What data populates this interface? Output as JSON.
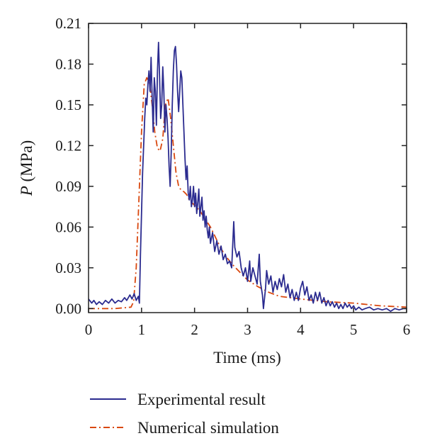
{
  "chart_data": {
    "type": "line",
    "title": "",
    "xlabel": "Time (ms)",
    "ylabel": {
      "symbol": "P",
      "unit": " (MPa)"
    },
    "xlim": [
      0,
      6
    ],
    "ylim": [
      -0.003,
      0.21
    ],
    "xticks": [
      "0",
      "1",
      "2",
      "3",
      "4",
      "5",
      "6"
    ],
    "yticks": [
      "0.00",
      "0.03",
      "0.06",
      "0.09",
      "0.12",
      "0.15",
      "0.18",
      "0.21"
    ],
    "grid": false,
    "legend_position": "bottom",
    "series": [
      {
        "name": "Experimental result",
        "color": "#2b2b8f",
        "style": "solid",
        "points": [
          [
            0.0,
            0.007
          ],
          [
            0.06,
            0.004
          ],
          [
            0.1,
            0.006
          ],
          [
            0.15,
            0.003
          ],
          [
            0.2,
            0.005
          ],
          [
            0.26,
            0.003
          ],
          [
            0.32,
            0.006
          ],
          [
            0.38,
            0.004
          ],
          [
            0.44,
            0.007
          ],
          [
            0.5,
            0.004
          ],
          [
            0.56,
            0.006
          ],
          [
            0.62,
            0.005
          ],
          [
            0.68,
            0.008
          ],
          [
            0.72,
            0.006
          ],
          [
            0.78,
            0.01
          ],
          [
            0.82,
            0.007
          ],
          [
            0.86,
            0.011
          ],
          [
            0.9,
            0.006
          ],
          [
            0.94,
            0.009
          ],
          [
            0.96,
            0.004
          ],
          [
            0.98,
            0.04
          ],
          [
            1.0,
            0.07
          ],
          [
            1.02,
            0.1
          ],
          [
            1.04,
            0.12
          ],
          [
            1.06,
            0.14
          ],
          [
            1.08,
            0.155
          ],
          [
            1.1,
            0.15
          ],
          [
            1.12,
            0.165
          ],
          [
            1.14,
            0.175
          ],
          [
            1.16,
            0.16
          ],
          [
            1.18,
            0.185
          ],
          [
            1.2,
            0.155
          ],
          [
            1.22,
            0.13
          ],
          [
            1.24,
            0.17
          ],
          [
            1.26,
            0.16
          ],
          [
            1.28,
            0.135
          ],
          [
            1.3,
            0.175
          ],
          [
            1.32,
            0.196
          ],
          [
            1.34,
            0.17
          ],
          [
            1.36,
            0.14
          ],
          [
            1.38,
            0.15
          ],
          [
            1.4,
            0.178
          ],
          [
            1.42,
            0.16
          ],
          [
            1.44,
            0.13
          ],
          [
            1.46,
            0.15
          ],
          [
            1.48,
            0.14
          ],
          [
            1.5,
            0.125
          ],
          [
            1.52,
            0.105
          ],
          [
            1.54,
            0.09
          ],
          [
            1.56,
            0.115
          ],
          [
            1.58,
            0.15
          ],
          [
            1.6,
            0.175
          ],
          [
            1.62,
            0.19
          ],
          [
            1.64,
            0.193
          ],
          [
            1.66,
            0.18
          ],
          [
            1.68,
            0.16
          ],
          [
            1.7,
            0.145
          ],
          [
            1.72,
            0.16
          ],
          [
            1.74,
            0.175
          ],
          [
            1.76,
            0.17
          ],
          [
            1.78,
            0.15
          ],
          [
            1.8,
            0.13
          ],
          [
            1.82,
            0.11
          ],
          [
            1.84,
            0.095
          ],
          [
            1.86,
            0.105
          ],
          [
            1.88,
            0.085
          ],
          [
            1.9,
            0.08
          ],
          [
            1.92,
            0.09
          ],
          [
            1.94,
            0.075
          ],
          [
            1.96,
            0.08
          ],
          [
            1.98,
            0.09
          ],
          [
            2.0,
            0.075
          ],
          [
            2.02,
            0.085
          ],
          [
            2.04,
            0.07
          ],
          [
            2.06,
            0.078
          ],
          [
            2.08,
            0.088
          ],
          [
            2.1,
            0.068
          ],
          [
            2.12,
            0.075
          ],
          [
            2.14,
            0.082
          ],
          [
            2.16,
            0.065
          ],
          [
            2.18,
            0.072
          ],
          [
            2.2,
            0.06
          ],
          [
            2.22,
            0.068
          ],
          [
            2.24,
            0.058
          ],
          [
            2.26,
            0.052
          ],
          [
            2.28,
            0.06
          ],
          [
            2.3,
            0.048
          ],
          [
            2.34,
            0.056
          ],
          [
            2.38,
            0.042
          ],
          [
            2.42,
            0.05
          ],
          [
            2.46,
            0.04
          ],
          [
            2.5,
            0.046
          ],
          [
            2.54,
            0.036
          ],
          [
            2.58,
            0.04
          ],
          [
            2.62,
            0.033
          ],
          [
            2.66,
            0.035
          ],
          [
            2.7,
            0.03
          ],
          [
            2.74,
            0.064
          ],
          [
            2.76,
            0.045
          ],
          [
            2.8,
            0.038
          ],
          [
            2.84,
            0.042
          ],
          [
            2.88,
            0.03
          ],
          [
            2.92,
            0.024
          ],
          [
            2.96,
            0.03
          ],
          [
            3.0,
            0.02
          ],
          [
            3.04,
            0.035
          ],
          [
            3.06,
            0.02
          ],
          [
            3.1,
            0.03
          ],
          [
            3.14,
            0.024
          ],
          [
            3.18,
            0.018
          ],
          [
            3.22,
            0.04
          ],
          [
            3.24,
            0.02
          ],
          [
            3.28,
            0.01
          ],
          [
            3.3,
            0.0
          ],
          [
            3.34,
            0.015
          ],
          [
            3.36,
            0.028
          ],
          [
            3.4,
            0.018
          ],
          [
            3.44,
            0.024
          ],
          [
            3.48,
            0.012
          ],
          [
            3.52,
            0.02
          ],
          [
            3.56,
            0.014
          ],
          [
            3.6,
            0.022
          ],
          [
            3.64,
            0.016
          ],
          [
            3.68,
            0.025
          ],
          [
            3.72,
            0.012
          ],
          [
            3.76,
            0.018
          ],
          [
            3.8,
            0.008
          ],
          [
            3.84,
            0.014
          ],
          [
            3.88,
            0.006
          ],
          [
            3.92,
            0.012
          ],
          [
            3.96,
            0.006
          ],
          [
            4.0,
            0.015
          ],
          [
            4.04,
            0.02
          ],
          [
            4.08,
            0.01
          ],
          [
            4.12,
            0.016
          ],
          [
            4.16,
            0.006
          ],
          [
            4.2,
            0.01
          ],
          [
            4.24,
            0.004
          ],
          [
            4.28,
            0.012
          ],
          [
            4.32,
            0.006
          ],
          [
            4.36,
            0.012
          ],
          [
            4.4,
            0.004
          ],
          [
            4.44,
            0.008
          ],
          [
            4.48,
            0.002
          ],
          [
            4.52,
            0.006
          ],
          [
            4.56,
            0.002
          ],
          [
            4.6,
            0.005
          ],
          [
            4.64,
            0.001
          ],
          [
            4.68,
            0.004
          ],
          [
            4.72,
            0.0
          ],
          [
            4.76,
            0.003
          ],
          [
            4.8,
            0.0
          ],
          [
            4.84,
            0.004
          ],
          [
            4.88,
            0.001
          ],
          [
            4.92,
            0.003
          ],
          [
            4.96,
            0.0
          ],
          [
            5.0,
            0.002
          ],
          [
            5.04,
            -0.001
          ],
          [
            5.1,
            0.001
          ],
          [
            5.16,
            -0.001
          ],
          [
            5.22,
            0.0
          ],
          [
            5.3,
            0.001
          ],
          [
            5.38,
            -0.001
          ],
          [
            5.46,
            0.0
          ],
          [
            5.54,
            -0.001
          ],
          [
            5.62,
            0.0
          ],
          [
            5.7,
            -0.002
          ],
          [
            5.78,
            0.0
          ],
          [
            5.86,
            -0.001
          ],
          [
            5.94,
            0.0
          ],
          [
            6.0,
            0.0
          ]
        ]
      },
      {
        "name": "Numerical simulation",
        "color": "#d9480f",
        "style": "dash-dot",
        "points": [
          [
            0.0,
            0.0
          ],
          [
            0.5,
            0.0
          ],
          [
            0.8,
            0.001
          ],
          [
            0.85,
            0.005
          ],
          [
            0.9,
            0.03
          ],
          [
            0.95,
            0.08
          ],
          [
            1.0,
            0.13
          ],
          [
            1.05,
            0.165
          ],
          [
            1.1,
            0.17
          ],
          [
            1.15,
            0.166
          ],
          [
            1.2,
            0.15
          ],
          [
            1.25,
            0.13
          ],
          [
            1.3,
            0.118
          ],
          [
            1.35,
            0.116
          ],
          [
            1.4,
            0.125
          ],
          [
            1.45,
            0.15
          ],
          [
            1.5,
            0.155
          ],
          [
            1.55,
            0.14
          ],
          [
            1.6,
            0.12
          ],
          [
            1.65,
            0.1
          ],
          [
            1.7,
            0.09
          ],
          [
            1.75,
            0.087
          ],
          [
            1.8,
            0.086
          ],
          [
            1.85,
            0.084
          ],
          [
            1.9,
            0.08
          ],
          [
            2.0,
            0.076
          ],
          [
            2.1,
            0.072
          ],
          [
            2.2,
            0.066
          ],
          [
            2.3,
            0.06
          ],
          [
            2.4,
            0.052
          ],
          [
            2.5,
            0.044
          ],
          [
            2.6,
            0.038
          ],
          [
            2.7,
            0.033
          ],
          [
            2.8,
            0.029
          ],
          [
            2.9,
            0.025
          ],
          [
            3.0,
            0.021
          ],
          [
            3.2,
            0.016
          ],
          [
            3.4,
            0.012
          ],
          [
            3.6,
            0.009
          ],
          [
            3.8,
            0.008
          ],
          [
            4.0,
            0.007
          ],
          [
            4.5,
            0.005
          ],
          [
            5.0,
            0.004
          ],
          [
            5.5,
            0.002
          ],
          [
            6.0,
            0.001
          ]
        ]
      }
    ]
  }
}
